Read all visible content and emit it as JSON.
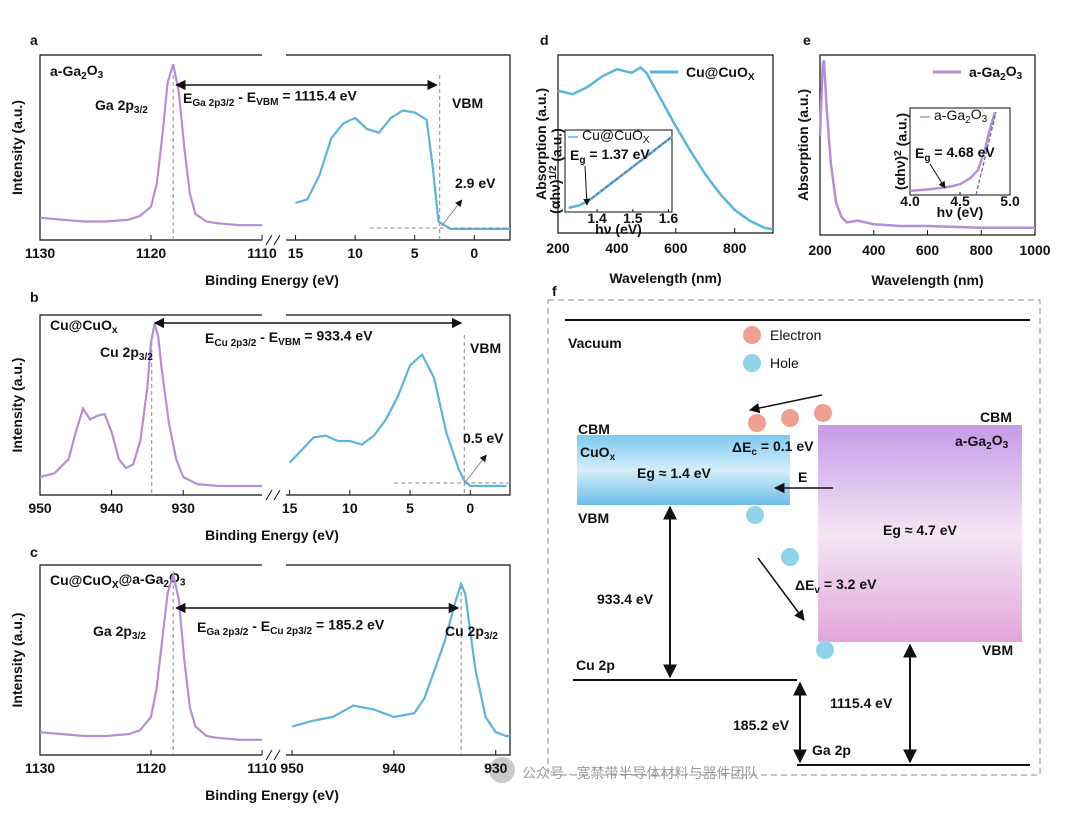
{
  "chart_data": [
    {
      "type": "line",
      "panel": "a",
      "sample": [
        "a-Ga",
        "2",
        "O",
        "3"
      ],
      "xlabel": "Binding Energy (eV)",
      "ylabel": "Intensity (a.u.)",
      "ylim": [
        0,
        1
      ],
      "labels": [
        [
          "Ga 2p",
          "3/2"
        ],
        [
          "E",
          "Ga 2p3/2",
          " - E",
          "VBM",
          " = 1115.4 eV"
        ],
        "VBM",
        "2.9 eV"
      ],
      "segments": [
        {
          "xlim": [
            1130,
            1110
          ],
          "xticks": [
            1130,
            1120,
            1110
          ],
          "vlines": [
            1118
          ],
          "series": [
            {
              "color": "#b48fd6",
              "x": [
                1130,
                1128,
                1126,
                1124,
                1122,
                1121,
                1120,
                1119.5,
                1119,
                1118.5,
                1118,
                1117.5,
                1117,
                1116.5,
                1116,
                1115,
                1114,
                1112,
                1110
              ],
              "values": [
                0.12,
                0.11,
                0.1,
                0.1,
                0.11,
                0.13,
                0.18,
                0.3,
                0.55,
                0.85,
                0.95,
                0.8,
                0.5,
                0.25,
                0.14,
                0.1,
                0.09,
                0.08,
                0.08
              ]
            }
          ]
        },
        {
          "xlim": [
            15.8,
            -3
          ],
          "xticks": [
            15,
            10,
            5,
            0
          ],
          "vlines": [
            2.9
          ],
          "series": [
            {
              "color": "#5ab4e0",
              "x": [
                15,
                14,
                13,
                12,
                11,
                10,
                9,
                8,
                7,
                6,
                5,
                4,
                3.5,
                3,
                2,
                1,
                0,
                -1,
                -2,
                -3
              ],
              "values": [
                0.2,
                0.22,
                0.35,
                0.55,
                0.63,
                0.66,
                0.6,
                0.58,
                0.66,
                0.7,
                0.69,
                0.65,
                0.4,
                0.1,
                0.06,
                0.06,
                0.06,
                0.06,
                0.06,
                0.06
              ]
            }
          ]
        }
      ]
    },
    {
      "type": "line",
      "panel": "b",
      "sample": [
        "Cu@CuO",
        "x"
      ],
      "xlabel": "Binding Energy (eV)",
      "ylabel": "Intensity (a.u.)",
      "ylim": [
        0,
        1
      ],
      "labels": [
        [
          "Cu 2p",
          "3/2"
        ],
        [
          "E",
          "Cu 2p3/2",
          " - E",
          "VBM",
          " = 933.4 eV"
        ],
        "VBM",
        "0.5 eV"
      ],
      "segments": [
        {
          "xlim": [
            950,
            919
          ],
          "xticks": [
            950,
            940,
            930
          ],
          "vlines": [
            934.4
          ],
          "series": [
            {
              "color": "#b48fd6",
              "x": [
                950,
                948,
                946,
                945,
                944,
                943,
                942,
                941,
                940,
                939,
                938,
                937,
                936,
                935,
                934.5,
                934,
                933.5,
                933,
                932,
                931,
                930,
                928,
                925,
                922,
                919
              ],
              "values": [
                0.1,
                0.12,
                0.2,
                0.35,
                0.48,
                0.42,
                0.44,
                0.45,
                0.35,
                0.2,
                0.15,
                0.17,
                0.3,
                0.6,
                0.85,
                0.95,
                0.88,
                0.7,
                0.4,
                0.2,
                0.1,
                0.06,
                0.05,
                0.05,
                0.05
              ]
            }
          ]
        },
        {
          "xlim": [
            15.3,
            -3.3
          ],
          "xticks": [
            15,
            10,
            5,
            0
          ],
          "vlines": [
            0.5
          ],
          "series": [
            {
              "color": "#5ab4e0",
              "x": [
                15,
                14,
                13,
                12,
                11,
                10,
                9,
                8,
                7,
                6,
                5,
                4,
                3,
                2,
                1,
                0.5,
                0,
                -1,
                -2,
                -3
              ],
              "values": [
                0.18,
                0.25,
                0.32,
                0.33,
                0.3,
                0.3,
                0.28,
                0.33,
                0.42,
                0.55,
                0.72,
                0.78,
                0.65,
                0.35,
                0.15,
                0.08,
                0.05,
                0.05,
                0.05,
                0.05
              ]
            }
          ]
        }
      ]
    },
    {
      "type": "line",
      "panel": "c",
      "sample": [
        "Cu@CuO",
        "X",
        "@a-Ga",
        "2",
        "O",
        "3"
      ],
      "xlabel": "Binding Energy (eV)",
      "ylabel": "Intensity (a.u.)",
      "ylim": [
        0,
        1
      ],
      "labels": [
        [
          "Ga 2p",
          "3/2"
        ],
        [
          "E",
          "Ga 2p3/2",
          " - E",
          "Cu 2p3/2",
          " = 185.2 eV"
        ],
        [
          "Cu 2p",
          "3/2"
        ]
      ],
      "segments": [
        {
          "xlim": [
            1130,
            1110
          ],
          "xticks": [
            1130,
            1120,
            1110
          ],
          "vlines": [
            1118
          ],
          "series": [
            {
              "color": "#b48fd6",
              "x": [
                1130,
                1128,
                1126,
                1124,
                1122,
                1121,
                1120,
                1119.5,
                1119,
                1118.5,
                1118,
                1117.5,
                1117,
                1116.5,
                1116,
                1115,
                1114,
                1112,
                1110
              ],
              "values": [
                0.12,
                0.11,
                0.1,
                0.1,
                0.11,
                0.13,
                0.2,
                0.35,
                0.6,
                0.85,
                0.95,
                0.82,
                0.5,
                0.25,
                0.15,
                0.1,
                0.09,
                0.08,
                0.08
              ]
            }
          ]
        },
        {
          "xlim": [
            950.6,
            928.6
          ],
          "xticks": [
            950,
            940,
            930
          ],
          "vlines": [
            933.4
          ],
          "series": [
            {
              "color": "#5ab4e0",
              "x": [
                950,
                948,
                946,
                944,
                942,
                940,
                938,
                937,
                936,
                935,
                934,
                933.4,
                933,
                932,
                931,
                930,
                929,
                928.6
              ],
              "values": [
                0.15,
                0.18,
                0.2,
                0.26,
                0.24,
                0.2,
                0.22,
                0.3,
                0.45,
                0.6,
                0.8,
                0.9,
                0.85,
                0.45,
                0.2,
                0.12,
                0.1,
                0.1
              ]
            }
          ]
        }
      ]
    },
    {
      "type": "line",
      "panel": "d",
      "xlabel": "Wavelength (nm)",
      "ylabel": "Absorption (a.u.)",
      "xlim": [
        200,
        930
      ],
      "xticks": [
        200,
        400,
        600,
        800
      ],
      "ylim": [
        0,
        1
      ],
      "series": [
        {
          "name": [
            "Cu@CuO",
            "X"
          ],
          "color": "#5ab4e0",
          "x": [
            200,
            250,
            300,
            350,
            400,
            450,
            480,
            500,
            550,
            600,
            650,
            700,
            750,
            800,
            850,
            900,
            930
          ],
          "values": [
            0.8,
            0.78,
            0.82,
            0.88,
            0.92,
            0.9,
            0.93,
            0.9,
            0.75,
            0.6,
            0.46,
            0.33,
            0.22,
            0.13,
            0.07,
            0.03,
            0.02
          ]
        }
      ],
      "inset": {
        "xlim": [
          1.31,
          1.61
        ],
        "xticks": [
          1.4,
          1.5,
          1.6
        ],
        "ylim": [
          0,
          1
        ],
        "xlabel": "hν (eV)",
        "ylabel": {
          "parts": [
            "(αhν)",
            "1/2",
            " (a.u.)"
          ],
          "script": "sup"
        },
        "series": [
          {
            "name": [
              "Cu@CuO",
              "X"
            ],
            "color": "#5ab4e0",
            "x": [
              1.32,
              1.35,
              1.38,
              1.41,
              1.44,
              1.47,
              1.5,
              1.53,
              1.56,
              1.59,
              1.61
            ],
            "values": [
              0.05,
              0.08,
              0.15,
              0.25,
              0.35,
              0.45,
              0.55,
              0.65,
              0.75,
              0.85,
              0.92
            ]
          }
        ],
        "fit": {
          "x": [
            1.37,
            1.61
          ],
          "values": [
            0.12,
            0.92
          ]
        },
        "label": [
          "E",
          "g",
          " = 1.37 eV"
        ]
      }
    },
    {
      "type": "line",
      "panel": "e",
      "xlabel": "Wavelength (nm)",
      "ylabel": "Absorption (a.u.)",
      "xlim": [
        200,
        1000
      ],
      "xticks": [
        200,
        400,
        600,
        800,
        1000
      ],
      "ylim": [
        0,
        1
      ],
      "series": [
        {
          "name": [
            "a-Ga",
            "2",
            "O",
            "3"
          ],
          "color": "#b48fd6",
          "x": [
            200,
            210,
            215,
            225,
            240,
            260,
            280,
            300,
            340,
            400,
            500,
            600,
            800,
            1000
          ],
          "values": [
            0.55,
            0.95,
            0.97,
            0.7,
            0.4,
            0.18,
            0.1,
            0.07,
            0.08,
            0.06,
            0.05,
            0.05,
            0.04,
            0.04
          ]
        }
      ],
      "inset": {
        "xlim": [
          4.0,
          5.0
        ],
        "xticks": [
          {
            "value": 4.0,
            "label": "4.0"
          },
          4.5,
          {
            "value": 5.0,
            "label": "5.0"
          }
        ],
        "ylim": [
          0,
          1.05
        ],
        "xlabel": "hν (eV)",
        "ylabel": {
          "parts": [
            "(αhν)",
            "2",
            " (a.u.)"
          ],
          "script": "sup"
        },
        "series": [
          {
            "name": [
              "a-Ga",
              "2",
              "O",
              "3"
            ],
            "color": "#b48fd6",
            "x": [
              4.0,
              4.2,
              4.4,
              4.5,
              4.6,
              4.68,
              4.75,
              4.8,
              4.85
            ],
            "values": [
              0.05,
              0.07,
              0.1,
              0.13,
              0.2,
              0.3,
              0.55,
              0.8,
              1.0
            ]
          }
        ],
        "fit": {
          "x": [
            4.66,
            4.86
          ],
          "values": [
            0.0,
            1.0
          ]
        },
        "label": [
          "E",
          "g",
          " = 4.68 eV"
        ]
      }
    }
  ],
  "band_diagram": {
    "panel": "f",
    "vacuum": "Vacuum",
    "legend": [
      {
        "name": "Electron",
        "color": "#f0a090"
      },
      {
        "name": "Hole",
        "color": "#90d4ec"
      }
    ],
    "left": {
      "name": [
        "CuO",
        "x"
      ],
      "cbm": "CBM",
      "vbm": "VBM",
      "gap": "Eg ≈ 1.4 eV"
    },
    "right": {
      "name": [
        "a-Ga",
        "2",
        "O",
        "3"
      ],
      "cbm": "CBM",
      "vbm": "VBM",
      "gap": "Eg ≈ 4.7 eV"
    },
    "conduction_offset": [
      "ΔE",
      "c",
      " = 0.1 eV"
    ],
    "valence_offset": [
      "ΔE",
      "v",
      " = 3.2 eV"
    ],
    "field": "E",
    "cu_level": "Cu 2p",
    "ga_level": "Ga 2p",
    "cu_to_vbm": "933.4 eV",
    "cu_to_ga": "185.2 eV",
    "ga_to_vbm": "1115.4 eV"
  },
  "watermark": "公众号 · 宽禁带半导体材料与器件团队"
}
